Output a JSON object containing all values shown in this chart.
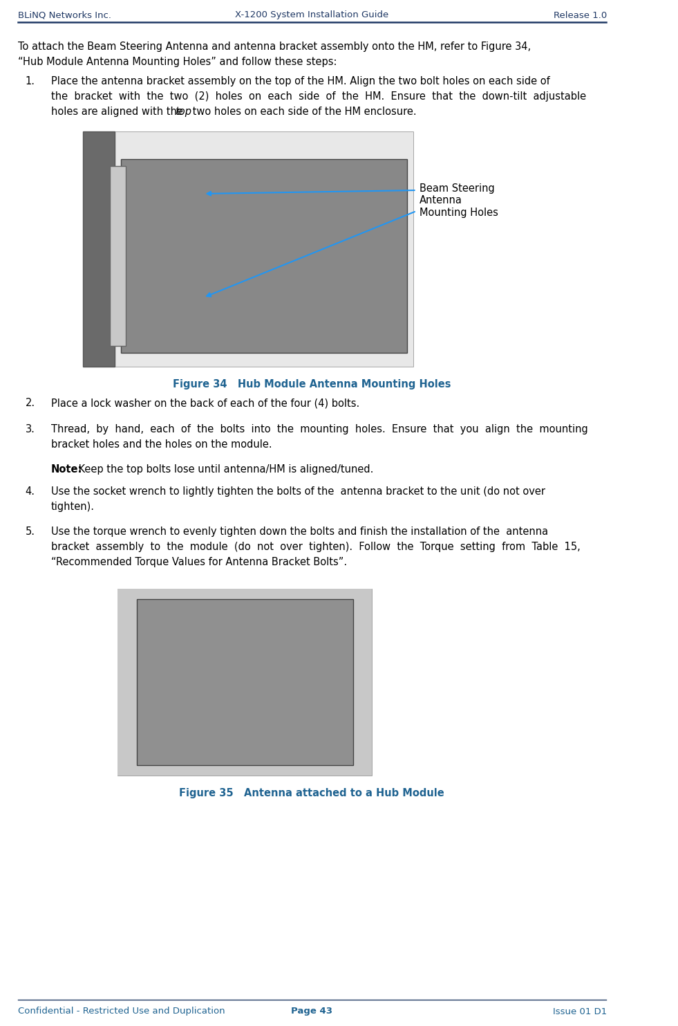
{
  "header_left": "BLiNQ Networks Inc.",
  "header_center": "X-1200 System Installation Guide",
  "header_right": "Release 1.0",
  "footer_left": "Confidential - Restricted Use and Duplication",
  "footer_center": "Page 43",
  "footer_right": "Issue 01 D1",
  "header_color": "#1F3864",
  "body_color": "#000000",
  "figure_label_color": "#1F6391",
  "background_color": "#FFFFFF",
  "header_fontsize": 9.5,
  "body_fontsize": 10.5,
  "footer_fontsize": 9.5,
  "figure_label_fontsize": 10.5,
  "intro_text": "To attach the Beam Steering Antenna and antenna bracket assembly onto the HM, refer to Figure 34,\n“Hub Module Antenna Mounting Holes” and follow these steps:",
  "step1_num": "1.",
  "step1_text": "Place the antenna bracket assembly on the top of the HM. Align the two bolt holes on each side of\nthe  bracket  with  the  two  (2)  holes  on  each  side  of  the  HM.  Ensure  that  the  down-tilt  adjustable\nholes are aligned with the —top two holes on each side of the HM enclosure.",
  "step1_italic": "top",
  "figure34_label": "Figure 34   Hub Module Antenna Mounting Holes",
  "step2_num": "2.",
  "step2_text": "Place a lock washer on the back of each of the four (4) bolts.",
  "step3_num": "3.",
  "step3_text": "Thread,  by  hand,  each  of  the  bolts  into  the  mounting  holes.  Ensure  that  you  align  the  mounting\nbracket holes and the holes on the module.",
  "note_label": "Note:",
  "note_text": " Keep the top bolts lose until antenna/HM is aligned/tuned.",
  "step4_num": "4.",
  "step4_text": "Use the socket wrench to lightly tighten the bolts of the  antenna bracket to the unit (do not over\ntighten).",
  "step5_num": "5.",
  "step5_text": "Use the torque wrench to evenly tighten down the bolts and finish the installation of the  antenna\nbracket  assembly  to  the  module  (do  not  over  tighten).  Follow  the  Torque  setting  from  Table  15,\n“Recommended Torque Values for Antenna Bracket Bolts”.",
  "figure35_label": "Figure 35   Antenna attached to a Hub Module",
  "img1_path": null,
  "img2_path": null
}
